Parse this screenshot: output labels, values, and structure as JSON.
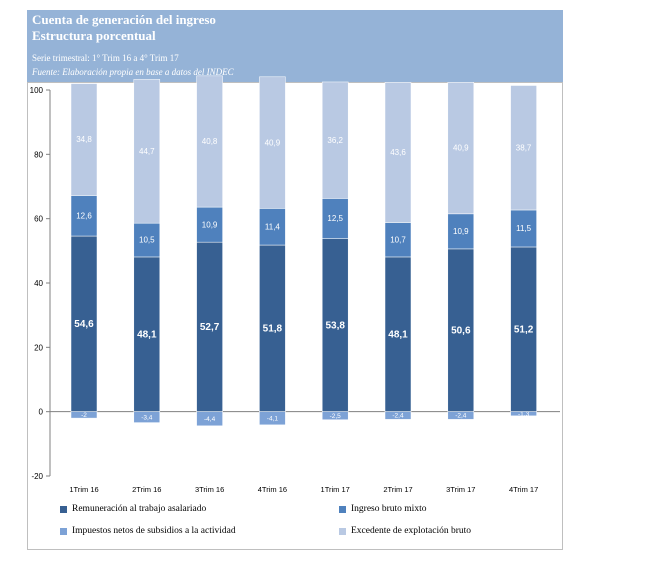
{
  "header": {
    "title_line1": "Cuenta de generación del ingreso",
    "title_line2": "Estructura porcentual",
    "subtitle": "Serie trimestral: 1° Trim 16 a 4° Trim 17",
    "source": "Fuente: Elaboración propia en base a datos del INDEC"
  },
  "colors": {
    "header_bg": "#95b3d7",
    "remuneracion": "#376092",
    "ingreso_mixto": "#4f81bd",
    "impuestos": "#7da2d6",
    "excedente": "#b9c9e3"
  },
  "chart_data": {
    "type": "bar",
    "stacked": true,
    "categories": [
      "1Trim 16",
      "2Trim 16",
      "3Trim 16",
      "4Trim 16",
      "1Trim 17",
      "2Trim 17",
      "3Trim 17",
      "4Trim 17"
    ],
    "ylim": [
      -20,
      100
    ],
    "yticks": [
      -20,
      0,
      20,
      40,
      60,
      80,
      100
    ],
    "grid": false,
    "legend_position": "bottom",
    "series": [
      {
        "name": "Remuneración al trabajo asalariado",
        "values": [
          54.6,
          48.1,
          52.7,
          51.8,
          53.8,
          48.1,
          50.6,
          51.2
        ],
        "labels": [
          "54,6",
          "48,1",
          "52,7",
          "51,8",
          "53,8",
          "48,1",
          "50,6",
          "51,2"
        ]
      },
      {
        "name": "Ingreso bruto mixto",
        "values": [
          12.6,
          10.5,
          10.9,
          11.4,
          12.5,
          10.7,
          10.9,
          11.5
        ],
        "labels": [
          "12,6",
          "10,5",
          "10,9",
          "11,4",
          "12,5",
          "10,7",
          "10,9",
          "11,5"
        ]
      },
      {
        "name": "Impuestos netos de subsidios a la actividad",
        "values": [
          -2.0,
          -3.4,
          -4.4,
          -4.1,
          -2.5,
          -2.4,
          -2.4,
          -1.3
        ],
        "labels": [
          "-2",
          "-3,4",
          "-4,4",
          "-4,1",
          "-2,5",
          "-2,4",
          "-2,4",
          "-1,3"
        ]
      },
      {
        "name": "Excedente de explotación bruto",
        "values": [
          34.8,
          44.7,
          40.8,
          40.9,
          36.2,
          43.6,
          40.9,
          38.7
        ],
        "labels": [
          "34,8",
          "44,7",
          "40,8",
          "40,9",
          "36,2",
          "43,6",
          "40,9",
          "38,7"
        ]
      }
    ]
  }
}
